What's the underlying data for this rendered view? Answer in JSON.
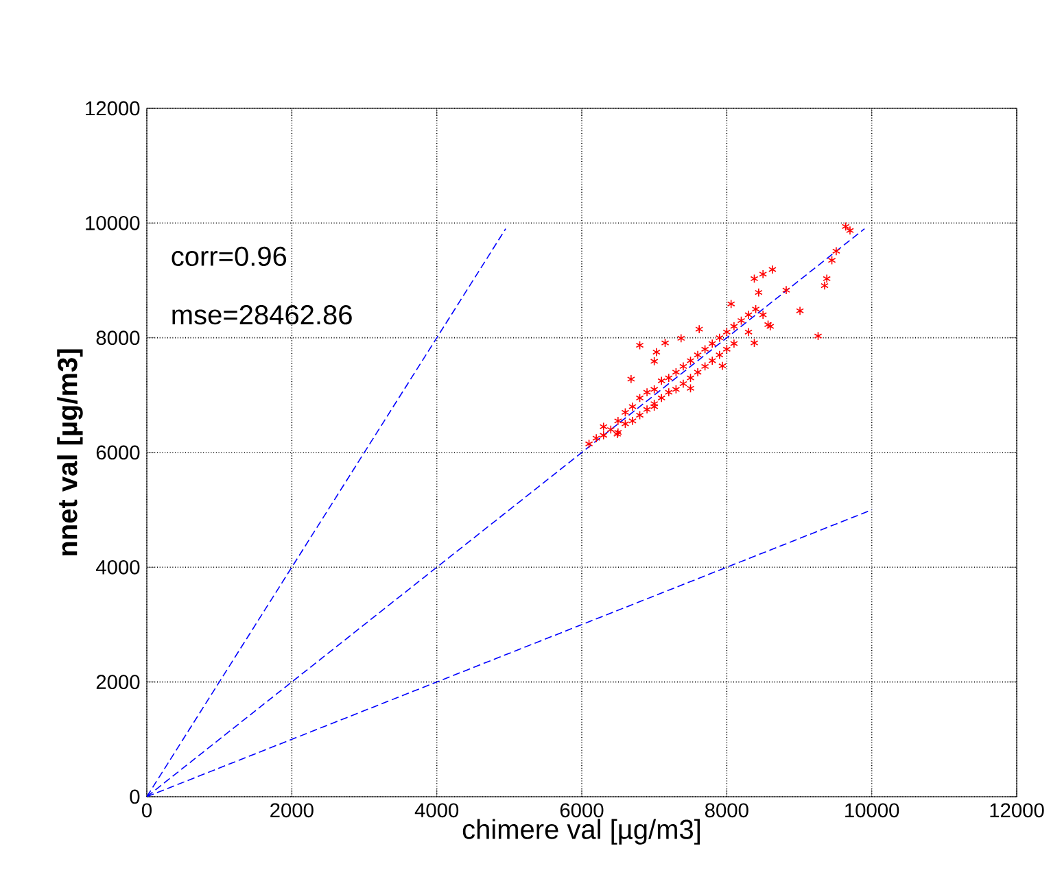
{
  "chart_data": {
    "type": "scatter",
    "xlabel": "chimere val [µg/m3]",
    "ylabel": "nnet val [µg/m3]",
    "xlim": [
      0,
      12000
    ],
    "ylim": [
      0,
      12000
    ],
    "xticks": [
      0,
      2000,
      4000,
      6000,
      8000,
      10000,
      12000
    ],
    "yticks": [
      0,
      2000,
      4000,
      6000,
      8000,
      10000,
      12000
    ],
    "grid": true,
    "marker": "cross",
    "annotations": [
      "corr=0.96",
      "mse=28462.86"
    ],
    "series": [
      {
        "type": "line",
        "color": "#0000ff",
        "line_style": "dashed",
        "marker": "none",
        "x": [
          0,
          4950
        ],
        "values": [
          0,
          9900
        ]
      },
      {
        "type": "line",
        "color": "#0000ff",
        "line_style": "dashed",
        "marker": "none",
        "x": [
          0,
          9900
        ],
        "values": [
          0,
          9900
        ]
      },
      {
        "type": "line",
        "color": "#0000ff",
        "line_style": "dashed",
        "marker": "none",
        "x": [
          0,
          10000
        ],
        "values": [
          0,
          5000
        ]
      },
      {
        "color": "#ff0000",
        "x": [
          6100,
          6200,
          6300,
          6300,
          6400,
          6500,
          6500,
          6600,
          6600,
          6700,
          6700,
          6800,
          6800,
          6900,
          6900,
          7000,
          7000,
          7100,
          7100,
          7200,
          7200,
          7300,
          7300,
          7400,
          7400,
          7500,
          7500,
          7600,
          7600,
          7700,
          7700,
          7800,
          7800,
          7900,
          7900,
          8000,
          8000,
          8100,
          8100,
          8200,
          8300,
          8300,
          8400,
          8440,
          8500,
          8600,
          6680,
          7000,
          7370,
          7620,
          8060,
          6490,
          7000,
          7500,
          7940,
          8380,
          8570,
          6800,
          7150,
          7030,
          8500,
          8380,
          8630,
          9450,
          9380,
          9350,
          9510,
          9640,
          9700,
          9260,
          9010,
          8820
        ],
        "values": [
          6150,
          6250,
          6300,
          6450,
          6400,
          6550,
          6350,
          6700,
          6500,
          6800,
          6550,
          6950,
          6650,
          7050,
          6750,
          7100,
          6850,
          7250,
          6950,
          7300,
          7050,
          7400,
          7100,
          7500,
          7200,
          7600,
          7300,
          7700,
          7400,
          7800,
          7500,
          7900,
          7600,
          8000,
          7700,
          8100,
          7800,
          8200,
          7900,
          8300,
          8400,
          8100,
          8500,
          8790,
          8400,
          8200,
          7280,
          7590,
          7990,
          8150,
          8590,
          6320,
          6800,
          7120,
          7510,
          7910,
          8230,
          7870,
          7910,
          7750,
          9110,
          9030,
          9190,
          9350,
          9030,
          8910,
          9510,
          9940,
          9870,
          8030,
          8470,
          8830
        ]
      }
    ]
  }
}
